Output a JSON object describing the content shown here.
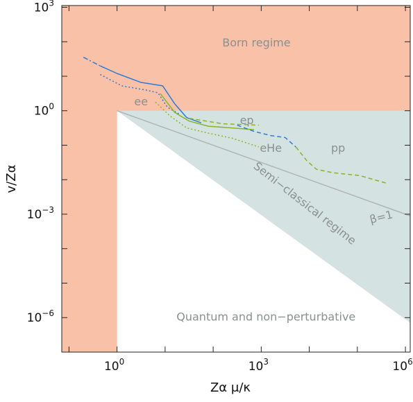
{
  "chart_data": {
    "type": "line",
    "xlabel": "Zα μ/κ",
    "ylabel": "v/Zα",
    "xscale": "log",
    "yscale": "log",
    "xlim_log10": [
      -1.15,
      6.1
    ],
    "ylim_log10": [
      -7.0,
      3.05
    ],
    "x_ticks": [
      {
        "base": "10",
        "exp": "0",
        "log10": 0
      },
      {
        "base": "10",
        "exp": "3",
        "log10": 3
      },
      {
        "base": "10",
        "exp": "6",
        "log10": 6
      }
    ],
    "y_ticks": [
      {
        "base": "10",
        "exp": "3",
        "log10": 3
      },
      {
        "base": "10",
        "exp": "0",
        "log10": 0
      },
      {
        "base": "10",
        "exp": "−3",
        "log10": -3
      },
      {
        "base": "10",
        "exp": "−6",
        "log10": -6
      }
    ],
    "regions": [
      {
        "name": "Born regime",
        "color": "#f9c1a8"
      },
      {
        "name": "Semi−classical regime",
        "color": "#d4e3e1"
      },
      {
        "name": "Quantum and non−perturbative",
        "color": "#ffffff"
      }
    ],
    "reference_line": {
      "label": "β=1",
      "x_log10": [
        0,
        6.1
      ],
      "y_log10": [
        0,
        -3.05
      ],
      "color": "#b0b6b7"
    },
    "series": [
      {
        "name": "ee",
        "color": "#2b7bd6",
        "dash": "solid",
        "x_log10": [
          -0.35,
          0.0,
          0.5,
          0.95,
          1.2,
          1.45,
          1.75
        ],
        "y_log10": [
          1.3,
          1.08,
          0.82,
          0.72,
          0.2,
          -0.2,
          -0.35
        ]
      },
      {
        "name": "ee",
        "color": "#2b7bd6",
        "dash": "dashdot",
        "x_log10": [
          -0.7,
          -0.35
        ],
        "y_log10": [
          1.55,
          1.3
        ]
      },
      {
        "name": "ee",
        "color": "#2b7bd6",
        "dash": "dotted",
        "x_log10": [
          -0.35,
          0.1,
          0.6,
          0.85,
          1.05,
          1.3
        ],
        "y_log10": [
          1.05,
          0.72,
          0.6,
          0.52,
          0.1,
          -0.1
        ]
      },
      {
        "name": "ep",
        "color": "#8ab522",
        "dash": "solid",
        "x_log10": [
          0.9,
          1.2,
          1.5,
          1.9,
          2.4,
          2.85
        ],
        "y_log10": [
          0.5,
          -0.05,
          -0.3,
          -0.45,
          -0.5,
          -0.55
        ]
      },
      {
        "name": "ep",
        "color": "#8ab522",
        "dash": "dashed",
        "x_log10": [
          1.5,
          2.2,
          2.95
        ],
        "y_log10": [
          -0.22,
          -0.38,
          -0.42
        ]
      },
      {
        "name": "eHe",
        "color": "#8ab522",
        "dash": "dotted",
        "x_log10": [
          0.8,
          1.1,
          1.45,
          1.9,
          2.4,
          2.95
        ],
        "y_log10": [
          0.25,
          -0.15,
          -0.5,
          -0.65,
          -0.8,
          -1.05
        ]
      },
      {
        "name": "pp",
        "color": "#2b7bd6",
        "dash": "dashed",
        "x_log10": [
          2.5,
          2.85,
          3.2,
          3.5,
          3.72
        ],
        "y_log10": [
          -0.42,
          -0.6,
          -0.72,
          -0.78,
          -1.05
        ]
      },
      {
        "name": "pp",
        "color": "#8ab522",
        "dash": "dashed",
        "x_log10": [
          3.72,
          3.95,
          4.15,
          4.5,
          5.05,
          5.6
        ],
        "y_log10": [
          -1.05,
          -1.45,
          -1.7,
          -1.8,
          -1.88,
          -2.1
        ]
      }
    ],
    "annotations": [
      {
        "text": "Born regime",
        "x_log10": 2.9,
        "y_log10": 1.95,
        "color": "#8a8f90"
      },
      {
        "text": "ee",
        "x_log10": 0.5,
        "y_log10": 0.25,
        "color": "#8a8f90"
      },
      {
        "text": "ep",
        "x_log10": 2.7,
        "y_log10": -0.3,
        "color": "#8a8f90"
      },
      {
        "text": "eHe",
        "x_log10": 3.2,
        "y_log10": -1.1,
        "color": "#8a8f90"
      },
      {
        "text": "pp",
        "x_log10": 4.6,
        "y_log10": -1.1,
        "color": "#8a8f90"
      },
      {
        "text": "Semi−classical regime",
        "x_log10": 3.9,
        "y_log10": -2.7,
        "color": "#8a8f90",
        "rotate_deg": 38
      },
      {
        "text": "β=1",
        "x_log10": 5.5,
        "y_log10": -3.1,
        "color": "#8a8f90",
        "rotate_deg": -14
      },
      {
        "text": "Quantum and non−perturbative",
        "x_log10": 3.1,
        "y_log10": -6.0,
        "color": "#8a8f90"
      }
    ]
  }
}
